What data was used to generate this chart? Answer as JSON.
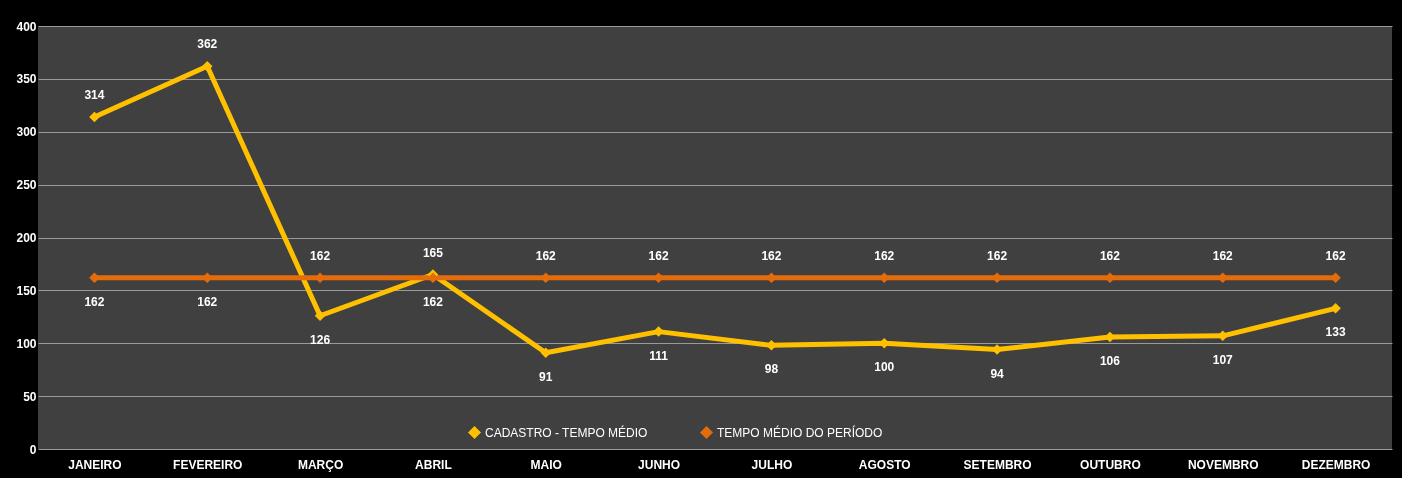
{
  "chart_data": {
    "type": "line",
    "categories": [
      "JANEIRO",
      "FEVEREIRO",
      "MARÇO",
      "ABRIL",
      "MAIO",
      "JUNHO",
      "JULHO",
      "AGOSTO",
      "SETEMBRO",
      "OUTUBRO",
      "NOVEMBRO",
      "DEZEMBRO"
    ],
    "series": [
      {
        "name": "CADASTRO - TEMPO MÉDIO",
        "color": "#ffc000",
        "values": [
          314,
          362,
          126,
          165,
          91,
          111,
          98,
          100,
          94,
          106,
          107,
          133
        ]
      },
      {
        "name": "TEMPO MÉDIO DO PERÍODO",
        "color": "#e46c0a",
        "values": [
          162,
          162,
          162,
          162,
          162,
          162,
          162,
          162,
          162,
          162,
          162,
          162
        ]
      }
    ],
    "ylim": [
      0,
      400
    ],
    "yticks": [
      0,
      50,
      100,
      150,
      200,
      250,
      300,
      350,
      400
    ],
    "grid": "y",
    "legend": "bottom",
    "marker": "diamond",
    "line_style": "solid",
    "data_labels": true
  }
}
